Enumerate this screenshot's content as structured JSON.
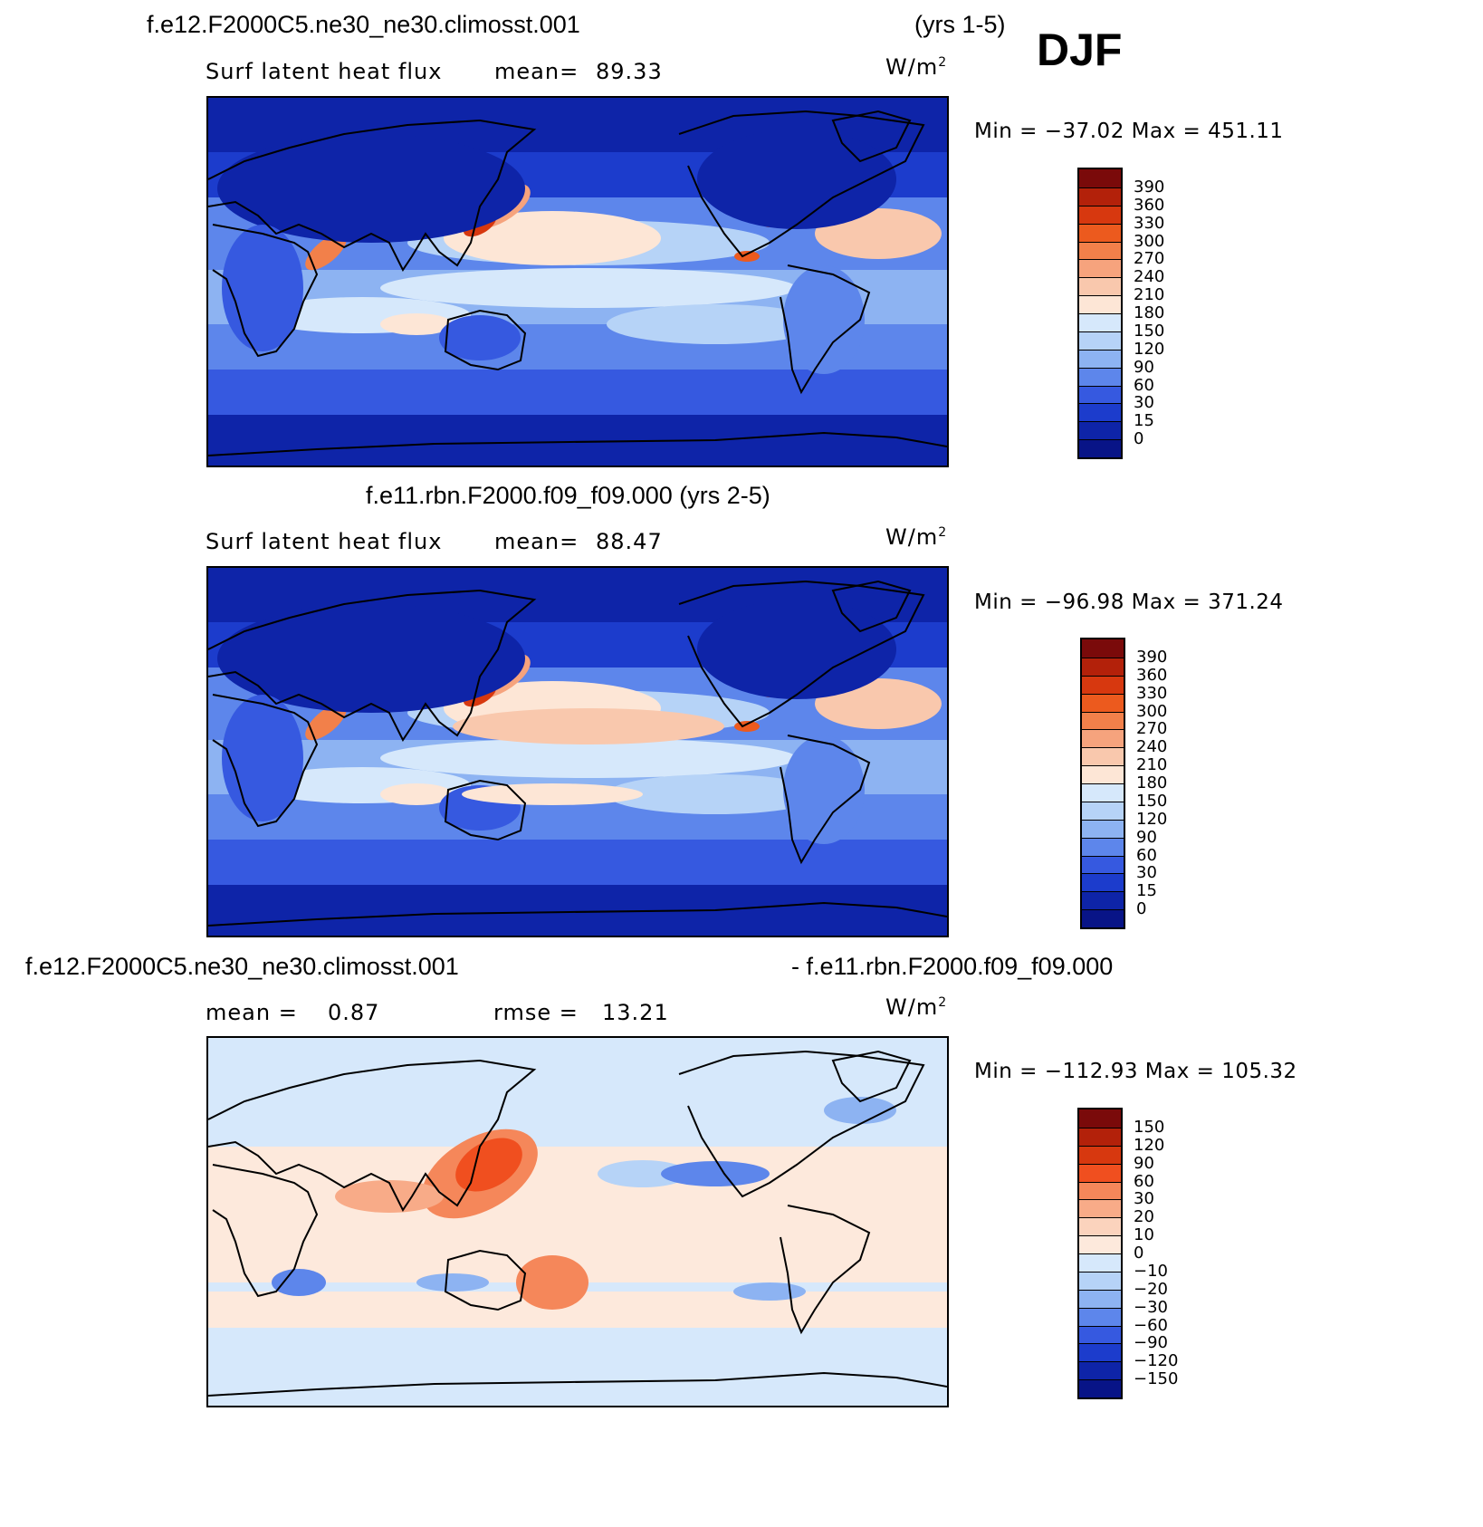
{
  "season": "DJF",
  "panels": [
    {
      "title_left": "f.e12.F2000C5.ne30_ne30.climosst.001",
      "title_right": "(yrs 1-5)",
      "variable": "Surf  latent  heat  flux",
      "stat_label": "mean=",
      "stat_value": "89.33",
      "units": "W/m",
      "units_sup": "2",
      "minmax": "Min  =  −37.02  Max  =  451.11",
      "palette": "abs",
      "colorbar_labels": [
        "390",
        "360",
        "330",
        "300",
        "270",
        "240",
        "210",
        "180",
        "150",
        "120",
        "90",
        "60",
        "30",
        "15",
        "0"
      ]
    },
    {
      "title_left": "f.e11.rbn.F2000.f09_f09.000 (yrs 2-5)",
      "title_right": "",
      "variable": "Surf  latent  heat  flux",
      "stat_label": "mean=",
      "stat_value": "88.47",
      "units": "W/m",
      "units_sup": "2",
      "minmax": "Min  =  −96.98  Max  =  371.24",
      "palette": "abs",
      "colorbar_labels": [
        "390",
        "360",
        "330",
        "300",
        "270",
        "240",
        "210",
        "180",
        "150",
        "120",
        "90",
        "60",
        "30",
        "15",
        "0"
      ]
    },
    {
      "title_left": "f.e12.F2000C5.ne30_ne30.climosst.001",
      "title_right": "- f.e11.rbn.F2000.f09_f09.000",
      "stat_label": "mean  =",
      "stat_value": "0.87",
      "stat2_label": "rmse  =",
      "stat2_value": "13.21",
      "units": "W/m",
      "units_sup": "2",
      "minmax": "Min  =  −112.93  Max  =  105.32",
      "palette": "diff",
      "colorbar_labels": [
        "150",
        "120",
        "90",
        "60",
        "30",
        "20",
        "10",
        "0",
        "−10",
        "−20",
        "−30",
        "−60",
        "−90",
        "−120",
        "−150"
      ]
    }
  ],
  "palettes": {
    "abs": [
      "#7a0a0a",
      "#b3210a",
      "#d7380f",
      "#ec5a1e",
      "#f2804a",
      "#f6a37d",
      "#f9c8ad",
      "#fde6d6",
      "#d6e8fb",
      "#b6d3f7",
      "#8db3f2",
      "#5d86eb",
      "#3659e0",
      "#1c3ccc",
      "#0e24a8",
      "#081487"
    ],
    "diff": [
      "#7a0a0a",
      "#b3210a",
      "#d7380f",
      "#f04f1f",
      "#f5875a",
      "#f8ab88",
      "#fbd3bd",
      "#fde9dc",
      "#d6e8fb",
      "#b6d3f7",
      "#8db3f2",
      "#5d86eb",
      "#3659e0",
      "#1c3ccc",
      "#0e24a8",
      "#081487"
    ]
  }
}
